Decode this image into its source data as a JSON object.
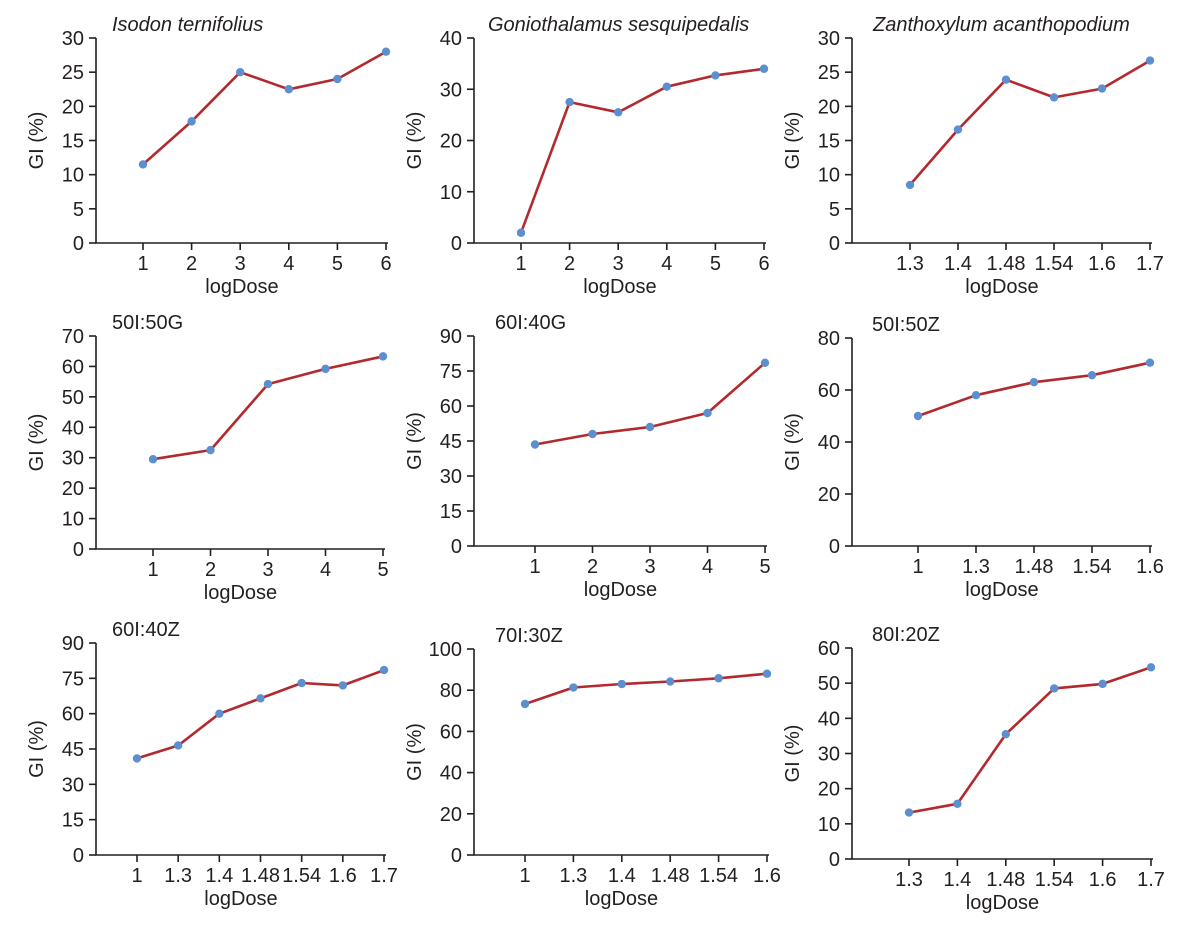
{
  "chart_data": [
    {
      "type": "line",
      "title": "Isodon ternifolius",
      "title_style": "italic",
      "xlabel": "logDose",
      "ylabel": "GI (%)",
      "categories": [
        "1",
        "2",
        "3",
        "4",
        "5",
        "6"
      ],
      "values": [
        11.5,
        17.8,
        25.0,
        22.5,
        24.0,
        28.0
      ],
      "ylim": [
        0,
        30
      ],
      "yticks": [
        0,
        5,
        10,
        15,
        20,
        25,
        30
      ],
      "grid": false
    },
    {
      "type": "line",
      "title": "Goniothalamus sesquipedalis",
      "title_style": "italic",
      "xlabel": "logDose",
      "ylabel": "GI (%)",
      "categories": [
        "1",
        "2",
        "3",
        "4",
        "5",
        "6"
      ],
      "values": [
        2.0,
        27.5,
        25.5,
        30.5,
        32.7,
        34.0
      ],
      "ylim": [
        0,
        40
      ],
      "yticks": [
        0,
        10,
        20,
        30,
        40
      ],
      "grid": false
    },
    {
      "type": "line",
      "title": "Zanthoxylum acanthopodium",
      "title_style": "italic",
      "xlabel": "logDose",
      "ylabel": "GI (%)",
      "categories": [
        "1.3",
        "1.4",
        "1.48",
        "1.54",
        "1.6",
        "1.7"
      ],
      "values": [
        8.5,
        16.6,
        23.9,
        21.3,
        22.6,
        26.7
      ],
      "ylim": [
        0,
        30
      ],
      "yticks": [
        0,
        5,
        10,
        15,
        20,
        25,
        30
      ],
      "grid": false
    },
    {
      "type": "line",
      "title": "50I:50G",
      "title_style": "normal",
      "xlabel": "logDose",
      "ylabel": "GI (%)",
      "categories": [
        "1",
        "2",
        "3",
        "4",
        "5"
      ],
      "values": [
        29.5,
        32.5,
        54.2,
        59.2,
        63.3
      ],
      "ylim": [
        0,
        70
      ],
      "yticks": [
        0,
        10,
        20,
        30,
        40,
        50,
        60,
        70
      ],
      "grid": false
    },
    {
      "type": "line",
      "title": "60I:40G",
      "title_style": "normal",
      "xlabel": "logDose",
      "ylabel": "GI (%)",
      "categories": [
        "1",
        "2",
        "3",
        "4",
        "5"
      ],
      "values": [
        43.5,
        48.0,
        51.0,
        57.0,
        78.5
      ],
      "ylim": [
        0,
        90
      ],
      "yticks": [
        0,
        15,
        30,
        45,
        60,
        75,
        90
      ],
      "grid": false
    },
    {
      "type": "line",
      "title": "50I:50Z",
      "title_style": "normal",
      "xlabel": "logDose",
      "ylabel": "GI (%)",
      "categories": [
        "1",
        "1.3",
        "1.48",
        "1.54",
        "1.6"
      ],
      "values": [
        50.0,
        58.0,
        63.0,
        65.7,
        70.5
      ],
      "ylim": [
        0,
        80
      ],
      "yticks": [
        0,
        20,
        40,
        60,
        80
      ],
      "grid": false
    },
    {
      "type": "line",
      "title": "60I:40Z",
      "title_style": "normal",
      "xlabel": "logDose",
      "ylabel": "GI (%)",
      "categories": [
        "1",
        "1.3",
        "1.4",
        "1.48",
        "1.54",
        "1.6",
        "1.7"
      ],
      "values": [
        41.0,
        46.5,
        60.0,
        66.5,
        73.0,
        72.0,
        78.5
      ],
      "ylim": [
        0,
        90
      ],
      "yticks": [
        0,
        15,
        30,
        45,
        60,
        75,
        90
      ],
      "grid": false
    },
    {
      "type": "line",
      "title": "70I:30Z",
      "title_style": "normal",
      "xlabel": "logDose",
      "ylabel": "GI (%)",
      "categories": [
        "1",
        "1.3",
        "1.4",
        "1.48",
        "1.54",
        "1.6"
      ],
      "values": [
        73.3,
        81.3,
        83.0,
        84.2,
        85.8,
        88.0
      ],
      "ylim": [
        0,
        100
      ],
      "yticks": [
        0,
        20,
        40,
        60,
        80,
        100
      ],
      "grid": false
    },
    {
      "type": "line",
      "title": "80I:20Z",
      "title_style": "normal",
      "xlabel": "logDose",
      "ylabel": "GI (%)",
      "categories": [
        "1.3",
        "1.4",
        "1.48",
        "1.54",
        "1.6",
        "1.7"
      ],
      "values": [
        13.2,
        15.7,
        35.5,
        48.5,
        49.8,
        54.5
      ],
      "ylim": [
        0,
        60
      ],
      "yticks": [
        0,
        10,
        20,
        30,
        40,
        50,
        60
      ],
      "grid": false
    }
  ],
  "colors": {
    "line": "#b22a2e",
    "marker": "#5b8fcf",
    "axis": "#231f20"
  }
}
